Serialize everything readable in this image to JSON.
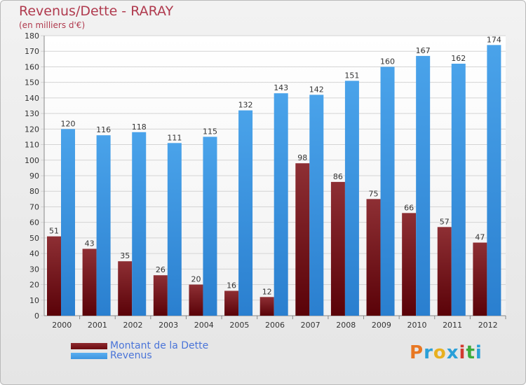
{
  "title": "Revenus/Dette - RARAY",
  "subtitle": "(en milliers d'€)",
  "logo": {
    "text": "Proxiti",
    "colors": [
      "#e87722",
      "#2aa0d8",
      "#e8b020",
      "#2aa0d8",
      "#d23a2f",
      "#3cab3c",
      "#2aa0d8"
    ]
  },
  "legend": {
    "dette_label": "Montant de la Dette",
    "revenus_label": "Revenus",
    "dette_color": "#6b0a0f",
    "revenus_color": "#3d95e0"
  },
  "chart_data": {
    "type": "bar",
    "title": "Revenus/Dette - RARAY",
    "subtitle": "(en milliers d'€)",
    "categories": [
      "2000",
      "2001",
      "2002",
      "2003",
      "2004",
      "2005",
      "2006",
      "2007",
      "2008",
      "2009",
      "2010",
      "2011",
      "2012"
    ],
    "series": [
      {
        "name": "Montant de la Dette",
        "color": "#7d1a1f",
        "values": [
          51,
          43,
          35,
          26,
          20,
          16,
          12,
          98,
          86,
          75,
          66,
          57,
          47
        ]
      },
      {
        "name": "Revenus",
        "color": "#3d95e0",
        "values": [
          120,
          116,
          118,
          111,
          115,
          132,
          143,
          142,
          151,
          160,
          167,
          162,
          174
        ]
      }
    ],
    "ylim": [
      0,
      180
    ],
    "ytick_step": 10,
    "grid": true,
    "legend_position": "bottom-left"
  }
}
